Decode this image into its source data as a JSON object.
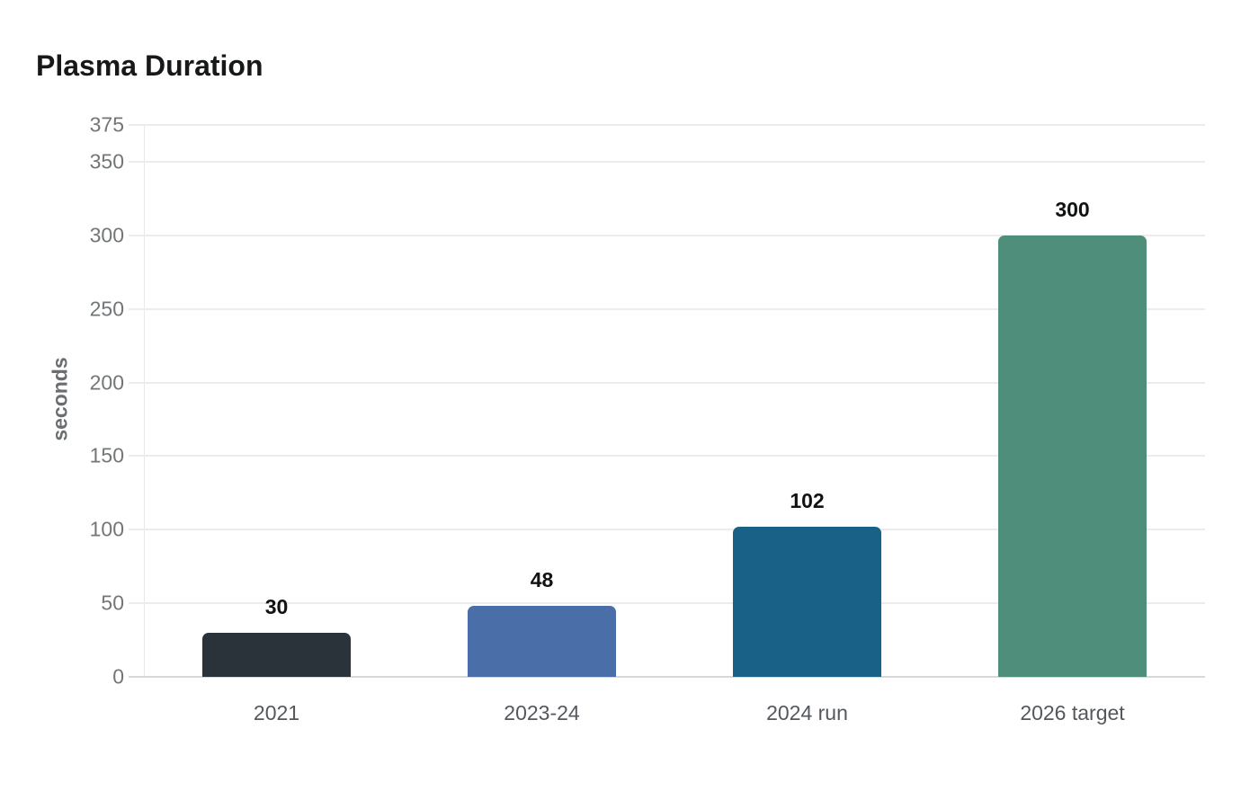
{
  "chart_data": {
    "type": "bar",
    "title": "Plasma Duration",
    "ylabel": "seconds",
    "xlabel": "",
    "categories": [
      "2021",
      "2023-24",
      "2024 run",
      "2026 target"
    ],
    "values": [
      30,
      48,
      102,
      300
    ],
    "value_labels": [
      "30",
      "48",
      "102",
      "300"
    ],
    "bar_colors": [
      "#2b333a",
      "#4a6fa8",
      "#1a6187",
      "#4e8e7b"
    ],
    "ylim": [
      0,
      375
    ],
    "yticks": [
      0,
      50,
      100,
      150,
      200,
      250,
      300,
      350,
      375
    ],
    "grid": true,
    "legend": false
  },
  "style": {
    "background": "#ffffff",
    "title_color": "#16181a",
    "tick_label_color": "#737678",
    "category_label_color": "#54585c",
    "value_label_color": "#101214",
    "grid_color": "#ececec",
    "baseline_color": "#d8d8d8",
    "axis_line_color": "#e9e9e9",
    "ylabel_color": "#6b6e70"
  }
}
